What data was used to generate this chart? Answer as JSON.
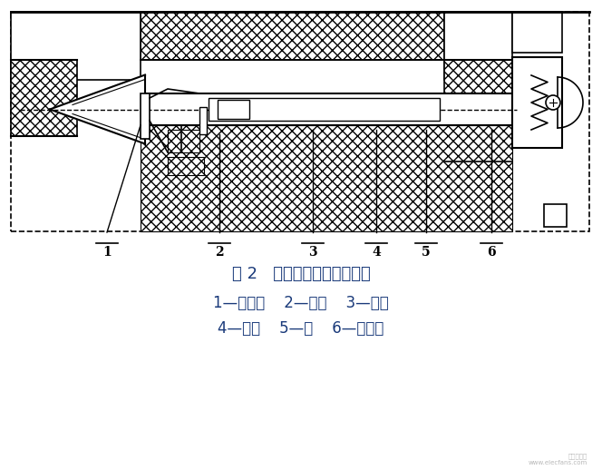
{
  "title": "图 2   联锁机构的设计剖面图",
  "legend_line1": "1—牵引杆    2—推杆    3—基座",
  "legend_line2": "4—弹簧    5—轴    6—定位件",
  "bg_color": "#ffffff",
  "line_color": "#000000",
  "label_color": "#1a3a7a",
  "fig_width": 6.64,
  "fig_height": 5.18,
  "dpi": 100
}
